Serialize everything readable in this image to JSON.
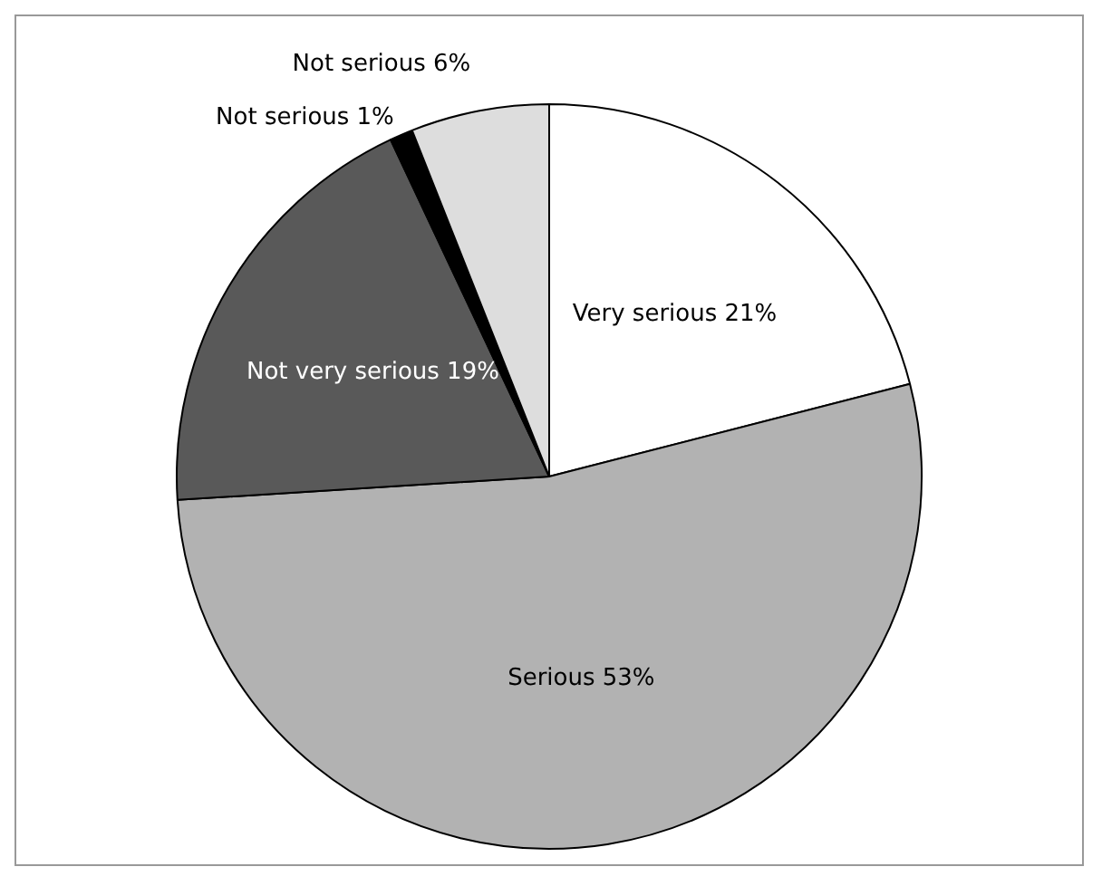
{
  "chart_data": {
    "type": "pie",
    "categories": [
      "Very serious",
      "Serious",
      "Not very serious",
      "Not serious",
      "Not serious"
    ],
    "values": [
      21,
      53,
      19,
      1,
      6
    ],
    "colors": [
      "#ffffff",
      "#b2b2b2",
      "#595959",
      "#000000",
      "#dddddd"
    ],
    "value_labels": [
      "21%",
      "53%",
      "19%",
      "1%",
      "6%"
    ],
    "legend": false
  }
}
